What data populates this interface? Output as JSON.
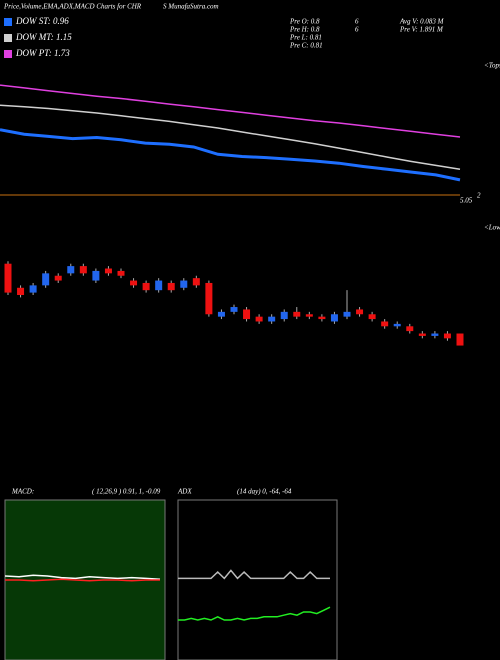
{
  "chart_data": [
    {
      "type": "line",
      "title": "Price,Volume,EMA,ADX,MACD Charts for CHR",
      "title_cont": "S MunafaSutra.com",
      "texts": [
        "Pre  O: 0.8",
        "6",
        "Avg  V: 0.083  M",
        "Pre  H: 0.8",
        "6",
        "Pre   V: 1.891  M",
        "Pre  L: 0.81",
        "Pre  C: 0.81",
        "<Tops",
        "5.05",
        "2"
      ],
      "ylim": [
        0.69,
        3.02
      ],
      "series": [
        {
          "name": "DOW ST: 0.96",
          "color": "#1e6fff",
          "values": [
            1.86,
            1.78,
            1.74,
            1.7,
            1.72,
            1.68,
            1.62,
            1.6,
            1.55,
            1.42,
            1.38,
            1.36,
            1.33,
            1.3,
            1.26,
            1.2,
            1.15,
            1.1,
            1.05,
            0.96
          ]
        },
        {
          "name": "DOW MT: 1.15",
          "color": "#d0d0d0",
          "values": [
            2.3,
            2.27,
            2.24,
            2.2,
            2.16,
            2.11,
            2.06,
            2.01,
            1.95,
            1.89,
            1.82,
            1.75,
            1.68,
            1.61,
            1.53,
            1.45,
            1.37,
            1.29,
            1.22,
            1.15
          ]
        },
        {
          "name": "DOW PT: 1.73",
          "color": "#e040e0",
          "values": [
            2.66,
            2.61,
            2.56,
            2.51,
            2.46,
            2.42,
            2.37,
            2.32,
            2.27,
            2.22,
            2.17,
            2.12,
            2.07,
            2.02,
            1.98,
            1.93,
            1.88,
            1.83,
            1.78,
            1.73
          ]
        }
      ]
    },
    {
      "type": "candlestick",
      "texts": [
        "<Lows"
      ],
      "ylim": [
        0.75,
        1.29
      ],
      "up_color": "#2266ee",
      "down_color": "#ee1111",
      "open": [
        1.15,
        1.05,
        1.03,
        1.06,
        1.1,
        1.11,
        1.14,
        1.08,
        1.13,
        1.12,
        1.08,
        1.07,
        1.04,
        1.07,
        1.05,
        1.09,
        1.07,
        0.93,
        0.95,
        0.96,
        0.93,
        0.91,
        0.92,
        0.95,
        0.94,
        0.93,
        0.91,
        0.93,
        0.96,
        0.94,
        0.91,
        0.89,
        0.89,
        0.86,
        0.85,
        0.86,
        0.86
      ],
      "close": [
        1.03,
        1.02,
        1.06,
        1.11,
        1.08,
        1.14,
        1.11,
        1.12,
        1.11,
        1.1,
        1.06,
        1.04,
        1.08,
        1.04,
        1.08,
        1.06,
        0.94,
        0.95,
        0.97,
        0.92,
        0.91,
        0.93,
        0.95,
        0.93,
        0.93,
        0.92,
        0.94,
        0.95,
        0.94,
        0.92,
        0.89,
        0.9,
        0.87,
        0.85,
        0.86,
        0.84,
        0.81
      ],
      "high": [
        1.16,
        1.06,
        1.07,
        1.12,
        1.11,
        1.15,
        1.15,
        1.13,
        1.14,
        1.13,
        1.09,
        1.08,
        1.09,
        1.08,
        1.09,
        1.1,
        1.08,
        0.96,
        0.98,
        0.97,
        0.94,
        0.94,
        0.96,
        0.97,
        0.95,
        0.94,
        0.95,
        1.04,
        0.97,
        0.95,
        0.92,
        0.91,
        0.9,
        0.87,
        0.87,
        0.87,
        0.86
      ],
      "low": [
        1.02,
        1.01,
        1.02,
        1.05,
        1.07,
        1.1,
        1.1,
        1.07,
        1.1,
        1.09,
        1.05,
        1.03,
        1.03,
        1.03,
        1.04,
        1.05,
        0.93,
        0.92,
        0.94,
        0.91,
        0.9,
        0.9,
        0.91,
        0.92,
        0.92,
        0.91,
        0.9,
        0.92,
        0.93,
        0.91,
        0.88,
        0.88,
        0.86,
        0.84,
        0.84,
        0.83,
        0.81
      ]
    },
    {
      "type": "line",
      "texts": [
        "MACD:",
        "( 12,26,9 ) 0.91,  1,  -0.09"
      ],
      "ylim": [
        -1,
        1
      ],
      "series": [
        {
          "color": "#ffffff",
          "values": [
            0.05,
            0.04,
            0.06,
            0.05,
            0.03,
            0.02,
            0.04,
            0.03,
            0.02,
            0.03,
            0.02,
            0.01
          ]
        },
        {
          "color": "#ff2020",
          "values": [
            0,
            0,
            -0.01,
            0,
            0.01,
            0,
            -0.01,
            0,
            0,
            -0.01,
            0,
            0
          ]
        }
      ]
    },
    {
      "type": "line",
      "texts": [
        "ADX",
        "(14  day) 0,  -64,  -64"
      ],
      "ylim": [
        0,
        100
      ],
      "series": [
        {
          "color": "#bbbbbb",
          "values": [
            51,
            51,
            51,
            51,
            51,
            51,
            55,
            51,
            56,
            51,
            55,
            51,
            51,
            51,
            51,
            51,
            51,
            55,
            51,
            51,
            55,
            51,
            51,
            51
          ]
        },
        {
          "color": "#22ee22",
          "values": [
            25,
            25,
            26,
            25,
            26,
            25,
            27,
            25,
            25,
            26,
            25,
            26,
            26,
            27,
            27,
            27,
            28,
            29,
            28,
            30,
            30,
            29,
            31,
            33
          ]
        }
      ]
    }
  ]
}
